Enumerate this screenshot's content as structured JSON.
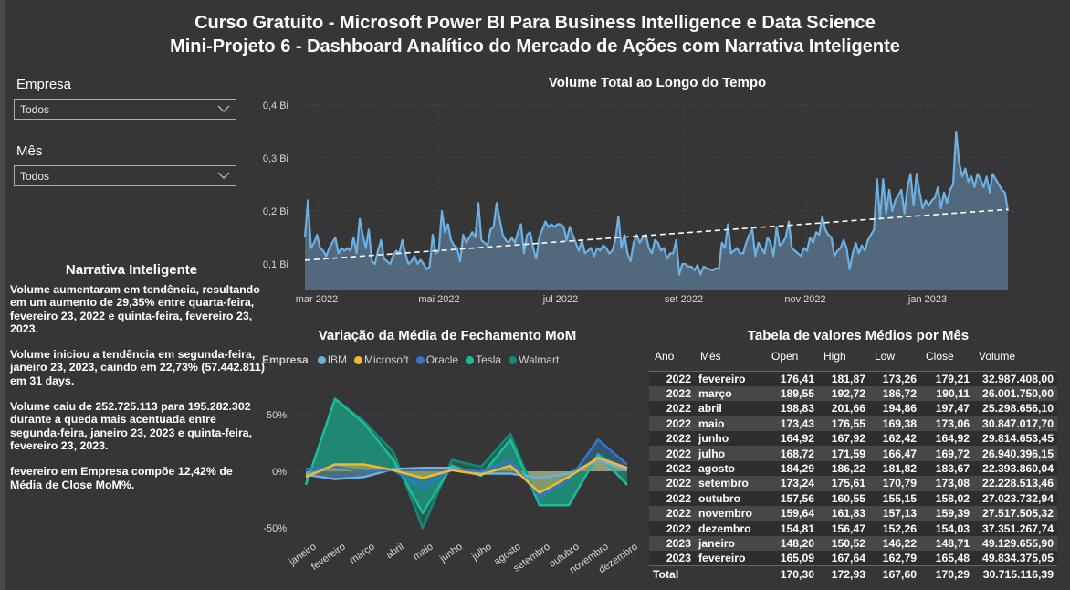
{
  "header": {
    "title_line1": "Curso Gratuito - Microsoft Power BI Para Business Intelligence e Data Science",
    "title_line2": "Mini-Projeto 6 - Dashboard Analítico do Mercado de Ações com Narrativa Inteligente"
  },
  "filters": {
    "empresa": {
      "label": "Empresa",
      "value": "Todos"
    },
    "mes": {
      "label": "Mês",
      "value": "Todos"
    }
  },
  "narrative": {
    "title": "Narrativa Inteligente",
    "paragraphs": [
      "Volume aumentaram em tendência, resultando em um aumento de 29,35% entre quarta-feira, fevereiro 23, 2022 e quinta-feira, fevereiro 23, 2023.",
      "Volume iniciou a tendência em segunda-feira, janeiro 23, 2023, caindo em 22,73% (57.442.811) em 31 days.",
      "Volume caiu de 252.725.113 para 195.282.302 durante a queda mais acentuada entre segunda-feira, janeiro 23, 2023 e quinta-feira, fevereiro 23, 2023.",
      "fevereiro em Empresa  compõe 12,42% de Média de Close MoM%."
    ]
  },
  "chart_data": [
    {
      "type": "area",
      "title": "Volume Total ao Longo do Tempo",
      "xlabel": "",
      "ylabel": "",
      "x_tick_labels": [
        "mar 2022",
        "mai 2022",
        "jul 2022",
        "set 2022",
        "nov 2022",
        "jan 2023"
      ],
      "y_tick_labels": [
        "0,1 Bi",
        "0,2 Bi",
        "0,3 Bi",
        "0,4 Bi"
      ],
      "ylim": [
        0.05,
        0.4
      ],
      "grid": true,
      "trendline": {
        "start": 0.107,
        "end": 0.203,
        "style": "dashed"
      },
      "line_color": "#6CB0E4",
      "fill_color": "#52687D",
      "series": [
        {
          "name": "Volume (Bi)",
          "values": [
            0.15,
            0.22,
            0.13,
            0.14,
            0.155,
            0.13,
            0.125,
            0.115,
            0.13,
            0.14,
            0.15,
            0.12,
            0.13,
            0.125,
            0.13,
            0.125,
            0.15,
            0.12,
            0.185,
            0.155,
            0.13,
            0.165,
            0.105,
            0.1,
            0.125,
            0.145,
            0.11,
            0.105,
            0.1,
            0.115,
            0.125,
            0.12,
            0.145,
            0.12,
            0.1,
            0.105,
            0.115,
            0.1,
            0.108,
            0.1,
            0.09,
            0.095,
            0.155,
            0.12,
            0.125,
            0.2,
            0.16,
            0.175,
            0.145,
            0.135,
            0.13,
            0.105,
            0.155,
            0.14,
            0.15,
            0.16,
            0.15,
            0.215,
            0.145,
            0.14,
            0.135,
            0.165,
            0.17,
            0.215,
            0.185,
            0.155,
            0.145,
            0.14,
            0.15,
            0.14,
            0.16,
            0.175,
            0.12,
            0.155,
            0.16,
            0.13,
            0.11,
            0.15,
            0.165,
            0.18,
            0.17,
            0.175,
            0.17,
            0.175,
            0.175,
            0.17,
            0.145,
            0.17,
            0.155,
            0.14,
            0.125,
            0.145,
            0.12,
            0.125,
            0.13,
            0.115,
            0.13,
            0.125,
            0.135,
            0.13,
            0.12,
            0.125,
            0.145,
            0.19,
            0.13,
            0.155,
            0.12,
            0.105,
            0.14,
            0.155,
            0.14,
            0.15,
            0.155,
            0.13,
            0.12,
            0.145,
            0.14,
            0.125,
            0.13,
            0.11,
            0.12,
            0.12,
            0.145,
            0.08,
            0.1,
            0.1,
            0.095,
            0.095,
            0.088,
            0.098,
            0.08,
            0.095,
            0.092,
            0.09,
            0.088,
            0.092,
            0.09,
            0.14,
            0.13,
            0.175,
            0.12,
            0.125,
            0.13,
            0.12,
            0.12,
            0.14,
            0.155,
            0.165,
            0.115,
            0.14,
            0.13,
            0.12,
            0.15,
            0.14,
            0.115,
            0.17,
            0.135,
            0.14,
            0.15,
            0.18,
            0.13,
            0.125,
            0.12,
            0.115,
            0.13,
            0.125,
            0.15,
            0.14,
            0.16,
            0.155,
            0.19,
            0.165,
            0.155,
            0.15,
            0.115,
            0.125,
            0.13,
            0.145,
            0.13,
            0.09,
            0.12,
            0.14,
            0.12,
            0.135,
            0.125,
            0.145,
            0.155,
            0.165,
            0.26,
            0.185,
            0.26,
            0.195,
            0.24,
            0.2,
            0.22,
            0.23,
            0.24,
            0.195,
            0.245,
            0.27,
            0.21,
            0.27,
            0.235,
            0.205,
            0.22,
            0.21,
            0.22,
            0.225,
            0.245,
            0.205,
            0.235,
            0.215,
            0.24,
            0.25,
            0.35,
            0.29,
            0.265,
            0.28,
            0.255,
            0.265,
            0.245,
            0.27,
            0.26,
            0.245,
            0.265,
            0.235,
            0.27,
            0.26,
            0.25,
            0.24,
            0.235,
            0.2
          ]
        }
      ]
    },
    {
      "type": "area",
      "title": "Variação da Média de Fechamento MoM",
      "legend_title": "Empresa",
      "legend_position": "top-left",
      "categories": [
        "janeiro",
        "fevereiro",
        "março",
        "abril",
        "maio",
        "junho",
        "julho",
        "agosto",
        "setembro",
        "outubro",
        "novembro",
        "dezembro"
      ],
      "y_tick_labels": [
        "50%",
        "0%",
        "-50%"
      ],
      "ylim": [
        -55,
        70
      ],
      "grid": true,
      "series": [
        {
          "name": "IBM",
          "color": "#6CB0E4",
          "values": [
            -3,
            -7,
            -5,
            2,
            3,
            3,
            -2,
            -2,
            -6,
            -2,
            10,
            1
          ]
        },
        {
          "name": "Microsoft",
          "color": "#F5B82E",
          "values": [
            -5,
            6,
            6,
            1,
            -6,
            1,
            -3,
            5,
            -19,
            -5,
            12,
            3
          ]
        },
        {
          "name": "Oracle",
          "color": "#3278C4",
          "values": [
            2,
            4,
            0,
            1,
            -16,
            2,
            0,
            10,
            -23,
            -8,
            28,
            6
          ]
        },
        {
          "name": "Tesla",
          "color": "#1ABC9C",
          "values": [
            -12,
            64,
            42,
            10,
            -37,
            5,
            -4,
            28,
            -30,
            -30,
            15,
            -12
          ]
        },
        {
          "name": "Walmart",
          "color": "#148A76",
          "values": [
            -12,
            64,
            44,
            17,
            -50,
            10,
            4,
            33,
            -30,
            -30,
            15,
            1
          ]
        }
      ]
    },
    {
      "type": "table",
      "title": "Tabela de valores Médios por Mês",
      "columns": [
        "Ano",
        "Mês",
        "Open",
        "High",
        "Low",
        "Close",
        "Volume"
      ],
      "rows": [
        [
          "2022",
          "fevereiro",
          "176,41",
          "181,87",
          "173,26",
          "179,21",
          "32.987.408,00"
        ],
        [
          "2022",
          "março",
          "189,55",
          "192,72",
          "186,72",
          "190,11",
          "26.001.750,00"
        ],
        [
          "2022",
          "abril",
          "198,83",
          "201,66",
          "194,86",
          "197,47",
          "25.298.656,10"
        ],
        [
          "2022",
          "maio",
          "173,43",
          "176,55",
          "169,38",
          "173,06",
          "30.847.017,70"
        ],
        [
          "2022",
          "junho",
          "164,92",
          "167,92",
          "162,42",
          "164,92",
          "29.814.653,45"
        ],
        [
          "2022",
          "julho",
          "168,72",
          "171,59",
          "166,47",
          "169,72",
          "26.940.396,15"
        ],
        [
          "2022",
          "agosto",
          "184,29",
          "186,22",
          "181,82",
          "183,67",
          "22.393.860,04"
        ],
        [
          "2022",
          "setembro",
          "173,24",
          "175,61",
          "170,79",
          "173,08",
          "22.228.513,46"
        ],
        [
          "2022",
          "outubro",
          "157,56",
          "160,55",
          "155,15",
          "158,02",
          "27.023.732,94"
        ],
        [
          "2022",
          "novembro",
          "159,64",
          "161,83",
          "157,13",
          "159,39",
          "27.517.505,32"
        ],
        [
          "2022",
          "dezembro",
          "154,81",
          "156,47",
          "152,26",
          "154,03",
          "37.351.267,74"
        ],
        [
          "2023",
          "janeiro",
          "148,20",
          "150,52",
          "146,22",
          "148,71",
          "49.129.655,90"
        ],
        [
          "2023",
          "fevereiro",
          "165,09",
          "167,64",
          "162,79",
          "165,48",
          "49.834.375,05"
        ]
      ],
      "total": [
        "Total",
        "",
        "170,30",
        "172,93",
        "167,60",
        "170,29",
        "30.715.116,39"
      ]
    }
  ]
}
